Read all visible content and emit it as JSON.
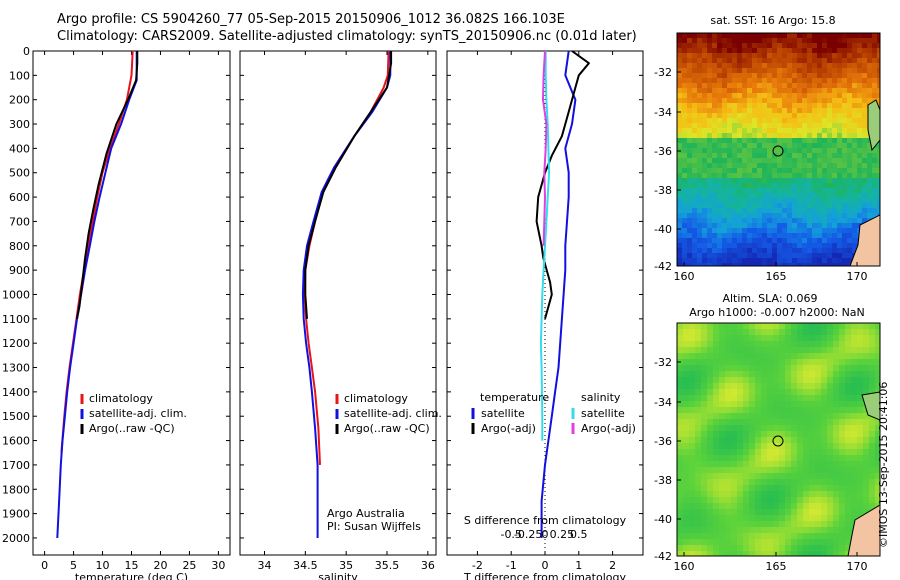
{
  "header": {
    "line1": "Argo profile: CS 5904260_77 05-Sep-2015 20150906_1012 36.082S 166.103E",
    "line2": "Climatology: CARS2009. Satellite-adjusted climatology: synTS_20150906.nc (0.01d later)"
  },
  "colors": {
    "climatology": "#e8131b",
    "satellite": "#1010e0",
    "argo": "#000000",
    "sat_sal": "#33ddee",
    "argo_sal": "#e040e0"
  },
  "depth_ticks": [
    0,
    100,
    200,
    300,
    400,
    500,
    600,
    700,
    800,
    900,
    1000,
    1100,
    1200,
    1300,
    1400,
    1500,
    1600,
    1700,
    1800,
    1900,
    2000
  ],
  "legend_items": [
    "climatology",
    "satellite-adj. clim.",
    "Argo(..raw -QC)"
  ],
  "chart_data": [
    {
      "type": "line",
      "xlabel": "temperature (deg C)",
      "ylim": [
        0,
        2070
      ],
      "xlim": [
        -2,
        32
      ],
      "xticks": [
        0,
        5,
        10,
        15,
        20,
        25,
        30
      ],
      "y_reversed": true,
      "series": [
        {
          "name": "climatology",
          "x": [
            15.2,
            15.0,
            14.2,
            12.8,
            11.3,
            10.0,
            9.1,
            8.3,
            7.5,
            6.8,
            6.1,
            5.5,
            4.9,
            4.3,
            3.8,
            3.4,
            2.9
          ],
          "y": [
            0,
            100,
            200,
            300,
            400,
            500,
            600,
            700,
            800,
            900,
            1000,
            1100,
            1200,
            1300,
            1400,
            1500,
            1650
          ]
        },
        {
          "name": "satellite-adj. clim.",
          "x": [
            15.9,
            15.9,
            14.6,
            13.2,
            11.5,
            10.5,
            9.5,
            8.6,
            7.8,
            7.0,
            6.3,
            5.6,
            5.0,
            4.4,
            3.9,
            3.5,
            3.1,
            2.8,
            2.5,
            2.2
          ],
          "y": [
            0,
            120,
            200,
            300,
            400,
            500,
            600,
            700,
            800,
            900,
            1000,
            1100,
            1200,
            1300,
            1400,
            1500,
            1600,
            1700,
            1850,
            2000
          ]
        },
        {
          "name": "Argo(..raw -QC)",
          "x": [
            16.0,
            16.0,
            15.8,
            14.4,
            12.4,
            10.7,
            9.3,
            8.4,
            7.6,
            7.0,
            6.5,
            6.0,
            5.6
          ],
          "y": [
            0,
            50,
            120,
            200,
            300,
            420,
            550,
            650,
            750,
            850,
            950,
            1050,
            1100
          ]
        }
      ]
    },
    {
      "type": "line",
      "xlabel": "salinity",
      "ylim": [
        0,
        2070
      ],
      "xlim": [
        33.7,
        36.1
      ],
      "xticks": [
        34,
        34.5,
        35,
        35.5,
        36
      ],
      "y_reversed": true,
      "series": [
        {
          "name": "climatology",
          "x": [
            35.52,
            35.51,
            35.46,
            35.3,
            35.1,
            34.85,
            34.7,
            34.62,
            34.55,
            34.5,
            34.49,
            34.51,
            34.54,
            34.58,
            34.62,
            34.66,
            34.68
          ],
          "y": [
            0,
            100,
            150,
            250,
            350,
            480,
            580,
            700,
            800,
            900,
            1000,
            1100,
            1200,
            1300,
            1400,
            1550,
            1700
          ]
        },
        {
          "name": "satellite-adj. clim.",
          "x": [
            35.54,
            35.54,
            35.5,
            35.32,
            35.1,
            34.85,
            34.7,
            34.6,
            34.52,
            34.48,
            34.47,
            34.48,
            34.51,
            34.55,
            34.58,
            34.62,
            34.65,
            34.65
          ],
          "y": [
            0,
            100,
            150,
            250,
            350,
            480,
            580,
            700,
            800,
            900,
            1000,
            1100,
            1200,
            1300,
            1400,
            1550,
            1700,
            2000
          ]
        },
        {
          "name": "Argo(..raw -QC)",
          "x": [
            35.55,
            35.55,
            35.5,
            35.3,
            35.1,
            34.87,
            34.72,
            34.62,
            34.54,
            34.5,
            34.5,
            34.52
          ],
          "y": [
            0,
            50,
            150,
            250,
            350,
            480,
            580,
            700,
            800,
            900,
            1000,
            1100
          ]
        }
      ],
      "annotation": [
        "Argo Australia",
        "PI: Susan Wijffels"
      ]
    },
    {
      "type": "line",
      "xlabel": "T difference from climatology",
      "x2label": "S difference from climatology",
      "xticks": [
        -2,
        -1,
        0,
        1,
        2
      ],
      "x2ticks": [
        "-0.5",
        "-0.25",
        "0",
        "0.25",
        "0.5"
      ],
      "x2tick_values": [
        -0.5,
        -0.25,
        0,
        0.25,
        0.5
      ],
      "xlim": [
        -2.9,
        2.9
      ],
      "ylim": [
        0,
        2070
      ],
      "y_reversed": true,
      "legend_headers": [
        "temperature",
        "salinity"
      ],
      "legend_items": [
        "satellite",
        "Argo(-adj)",
        "satellite",
        "Argo(-adj)"
      ],
      "series": [
        {
          "name": "satellite",
          "x": [
            0.7,
            0.6,
            0.9,
            0.8,
            0.6,
            0.7,
            0.7,
            0.65,
            0.6,
            0.6,
            0.55,
            0.5,
            0.45,
            0.4,
            0.3,
            0.2,
            0.1,
            0.0,
            -0.1,
            -0.1
          ],
          "y": [
            0,
            100,
            200,
            300,
            400,
            500,
            600,
            700,
            800,
            900,
            1000,
            1100,
            1200,
            1300,
            1400,
            1500,
            1600,
            1700,
            1850,
            2000
          ]
        },
        {
          "name": "Argo(-adj)",
          "x": [
            0.8,
            1.3,
            1.0,
            0.9,
            0.7,
            0.5,
            0.2,
            0.0,
            -0.2,
            -0.25,
            -0.1,
            -0.05,
            0.05,
            0.15,
            0.2,
            0.1,
            0.0
          ],
          "y": [
            0,
            50,
            100,
            150,
            250,
            350,
            430,
            500,
            600,
            700,
            800,
            850,
            900,
            950,
            1000,
            1050,
            1100
          ]
        },
        {
          "name": "satellite",
          "x": [
            0.01,
            0.01,
            0.02,
            0.04,
            0.05,
            0.06,
            0.04,
            0.02,
            0.0,
            -0.02,
            -0.04,
            -0.05,
            -0.06,
            -0.05,
            -0.04,
            -0.04
          ],
          "y": [
            0,
            100,
            200,
            300,
            400,
            500,
            600,
            700,
            800,
            900,
            1000,
            1100,
            1200,
            1300,
            1500,
            1600
          ]
        },
        {
          "name": "Argo(-adj)",
          "x": [
            0.0,
            -0.02,
            -0.03,
            0.02,
            0.01,
            -0.01,
            0.0,
            -0.01,
            -0.02
          ],
          "y": [
            0,
            100,
            200,
            300,
            400,
            500,
            600,
            700,
            800
          ]
        }
      ]
    }
  ],
  "maps": {
    "sst": {
      "title": "sat. SST: 16 Argo: 15.8",
      "yticks": [
        "-32",
        "-34",
        "-36",
        "-38",
        "-40",
        "-42"
      ],
      "xticks": [
        "160",
        "165",
        "170"
      ]
    },
    "sla": {
      "title1": "Altim. SLA: 0.069",
      "title2": "Argo h1000: -0.007 h2000: NaN",
      "yticks": [
        "-32",
        "-34",
        "-36",
        "-38",
        "-40",
        "-42"
      ],
      "xticks": [
        "160",
        "165",
        "170"
      ]
    }
  },
  "stamp": "©IMOS 13-Sep-2015 20:41:06"
}
